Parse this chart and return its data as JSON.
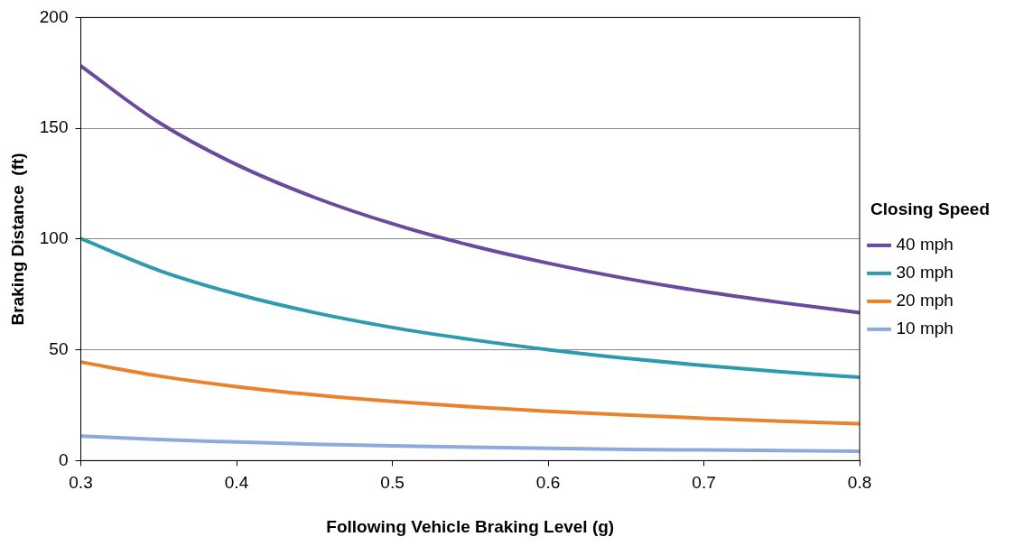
{
  "chart_data": {
    "type": "line",
    "xlabel": "Following Vehicle Braking Level (g)",
    "ylabel": "Braking Distance  (ft)",
    "legend_title": "Closing Speed",
    "x": [
      0.3,
      0.35,
      0.4,
      0.45,
      0.5,
      0.55,
      0.6,
      0.65,
      0.7,
      0.75,
      0.8
    ],
    "series": [
      {
        "name": "40 mph",
        "color": "#6a4a9c",
        "values": [
          178.1,
          152.7,
          133.6,
          118.8,
          106.9,
          97.2,
          89.1,
          82.2,
          76.3,
          71.3,
          66.8
        ]
      },
      {
        "name": "30 mph",
        "color": "#2e9aae",
        "values": [
          100.2,
          85.9,
          75.2,
          66.8,
          60.1,
          54.7,
          50.1,
          46.2,
          42.9,
          40.1,
          37.6
        ]
      },
      {
        "name": "20 mph",
        "color": "#e8832c",
        "values": [
          44.5,
          38.2,
          33.4,
          29.7,
          26.7,
          24.3,
          22.3,
          20.6,
          19.1,
          17.8,
          16.7
        ]
      },
      {
        "name": "10 mph",
        "color": "#8eaadb",
        "values": [
          11.1,
          9.5,
          8.4,
          7.4,
          6.7,
          6.1,
          5.6,
          5.1,
          4.8,
          4.5,
          4.2
        ]
      }
    ],
    "xlim": [
      0.3,
      0.8
    ],
    "xticks": [
      0.3,
      0.4,
      0.5,
      0.6,
      0.7,
      0.8
    ],
    "ylim": [
      0,
      200
    ],
    "yticks": [
      0,
      50,
      100,
      150,
      200
    ],
    "grid": "y",
    "legend": "right",
    "marker": "none",
    "line_style": "solid"
  }
}
